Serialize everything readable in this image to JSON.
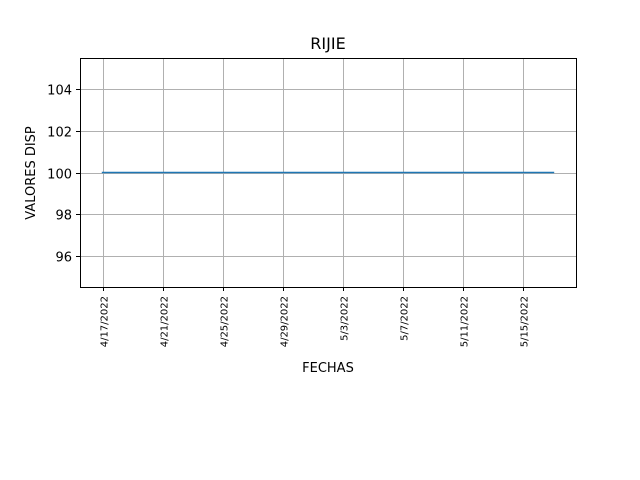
{
  "chart_data": {
    "type": "line",
    "title": "RIJIE",
    "xlabel": "FECHAS",
    "ylabel": "VALORES DISP",
    "x": [
      "2022-04-17",
      "2022-04-18",
      "2022-04-19",
      "2022-04-20",
      "2022-04-21",
      "2022-04-22",
      "2022-04-23",
      "2022-04-24",
      "2022-04-25",
      "2022-04-26",
      "2022-04-27",
      "2022-04-28",
      "2022-04-29",
      "2022-04-30",
      "2022-05-01",
      "2022-05-02",
      "2022-05-03",
      "2022-05-04",
      "2022-05-05",
      "2022-05-06",
      "2022-05-07",
      "2022-05-08",
      "2022-05-09",
      "2022-05-10",
      "2022-05-11",
      "2022-05-12",
      "2022-05-13",
      "2022-05-14",
      "2022-05-15",
      "2022-05-16",
      "2022-05-17"
    ],
    "series": [
      {
        "values": [
          100,
          100,
          100,
          100,
          100,
          100,
          100,
          100,
          100,
          100,
          100,
          100,
          100,
          100,
          100,
          100,
          100,
          100,
          100,
          100,
          100,
          100,
          100,
          100,
          100,
          100,
          100,
          100,
          100,
          100,
          100
        ],
        "color": "#1f77b4"
      }
    ],
    "xlim": [
      "2022-04-15T12:00:00",
      "2022-05-18T12:00:00"
    ],
    "ylim": [
      94.5,
      105.5
    ],
    "yticks": [
      96,
      98,
      100,
      102,
      104
    ],
    "xticks": [
      "2022-04-17",
      "2022-04-21",
      "2022-04-25",
      "2022-04-29",
      "2022-05-03",
      "2022-05-07",
      "2022-05-11",
      "2022-05-15"
    ],
    "xtick_labels": [
      "4/17/2022",
      "4/21/2022",
      "4/25/2022",
      "4/29/2022",
      "5/3/2022",
      "5/7/2022",
      "5/11/2022",
      "5/15/2022"
    ],
    "grid": true,
    "grid_color": "#b0b0b0"
  }
}
